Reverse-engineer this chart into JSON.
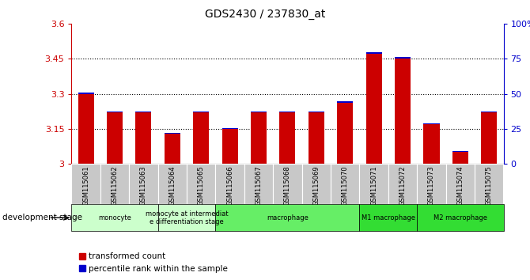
{
  "title": "GDS2430 / 237830_at",
  "samples": [
    "GSM115061",
    "GSM115062",
    "GSM115063",
    "GSM115064",
    "GSM115065",
    "GSM115066",
    "GSM115067",
    "GSM115068",
    "GSM115069",
    "GSM115070",
    "GSM115071",
    "GSM115072",
    "GSM115073",
    "GSM115074",
    "GSM115075"
  ],
  "red_values": [
    3.3,
    3.22,
    3.22,
    3.13,
    3.22,
    3.15,
    3.22,
    3.22,
    3.22,
    3.26,
    3.47,
    3.45,
    3.17,
    3.05,
    3.22
  ],
  "blue_values": [
    0.004,
    0.004,
    0.004,
    0.004,
    0.004,
    0.004,
    0.004,
    0.004,
    0.004,
    0.008,
    0.008,
    0.008,
    0.004,
    0.004,
    0.004
  ],
  "ylim_left": [
    3.0,
    3.6
  ],
  "ylim_right": [
    0,
    100
  ],
  "yticks_left": [
    3.0,
    3.15,
    3.3,
    3.45,
    3.6
  ],
  "yticks_right": [
    0,
    25,
    50,
    75,
    100
  ],
  "ytick_labels_left": [
    "3",
    "3.15",
    "3.3",
    "3.45",
    "3.6"
  ],
  "ytick_labels_right": [
    "0",
    "25",
    "50",
    "75",
    "100%"
  ],
  "hlines": [
    3.15,
    3.3,
    3.45
  ],
  "groups": [
    {
      "label": "monocyte",
      "start": 0,
      "end": 3,
      "color": "#ccffcc"
    },
    {
      "label": "monocyte at intermediat\ne differentiation stage",
      "start": 3,
      "end": 5,
      "color": "#ccffcc"
    },
    {
      "label": "macrophage",
      "start": 5,
      "end": 10,
      "color": "#66ee66"
    },
    {
      "label": "M1 macrophage",
      "start": 10,
      "end": 12,
      "color": "#33dd33"
    },
    {
      "label": "M2 macrophage",
      "start": 12,
      "end": 15,
      "color": "#33dd33"
    }
  ],
  "bar_color_red": "#cc0000",
  "bar_color_blue": "#0000cc",
  "bar_width": 0.55,
  "left_axis_color": "#cc0000",
  "right_axis_color": "#0000cc",
  "legend_red": "transformed count",
  "legend_blue": "percentile rank within the sample",
  "dev_stage_label": "development stage",
  "bg_color": "#ffffff",
  "sample_box_color": "#c8c8c8",
  "n_samples": 15
}
